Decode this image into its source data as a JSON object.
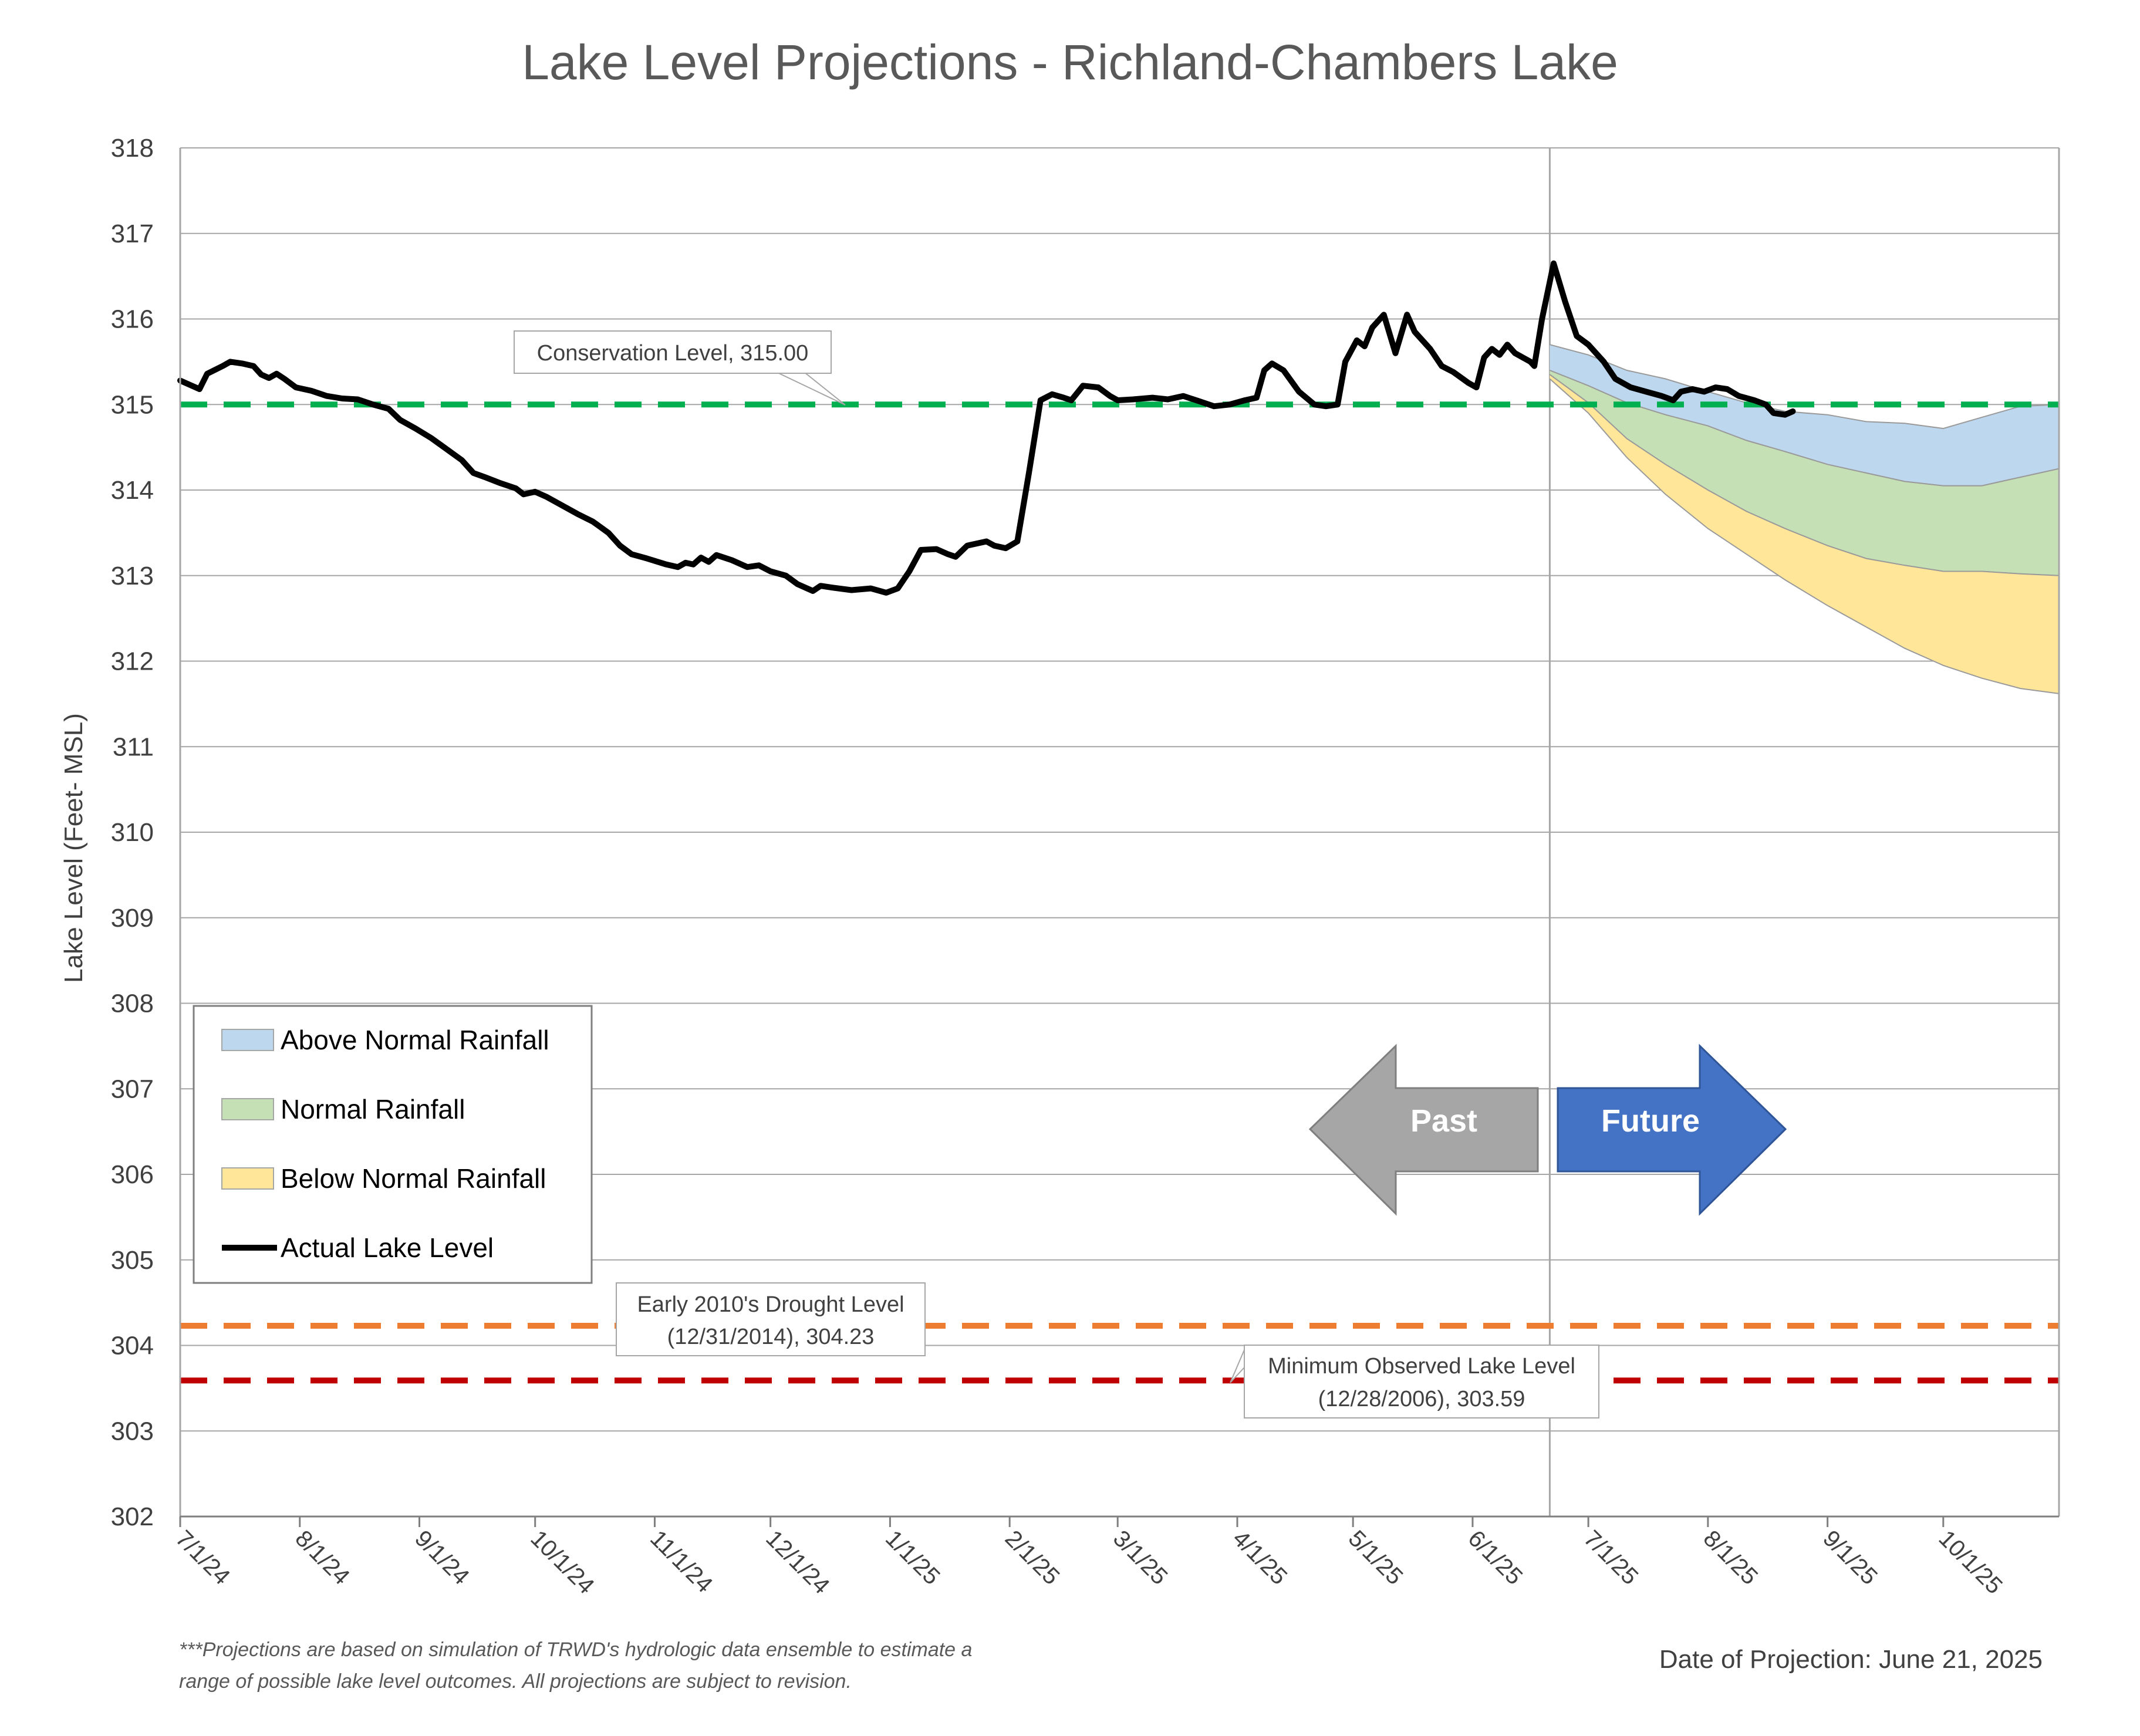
{
  "chart_data": {
    "type": "line",
    "title": "Lake Level Projections - Richland-Chambers Lake",
    "ylabel": "Lake Level (Feet- MSL)",
    "ylim": [
      302,
      318
    ],
    "yticks": [
      "302",
      "303",
      "304",
      "305",
      "306",
      "307",
      "308",
      "309",
      "310",
      "311",
      "312",
      "313",
      "314",
      "315",
      "316",
      "317",
      "318"
    ],
    "xlim": [
      "2024-07-01",
      "2025-10-31"
    ],
    "xticks": [
      {
        "label": "7/1/24",
        "date": "2024-07-01"
      },
      {
        "label": "8/1/24",
        "date": "2024-08-01"
      },
      {
        "label": "9/1/24",
        "date": "2024-09-01"
      },
      {
        "label": "10/1/24",
        "date": "2024-10-01"
      },
      {
        "label": "11/1/24",
        "date": "2024-11-01"
      },
      {
        "label": "12/1/24",
        "date": "2024-12-01"
      },
      {
        "label": "1/1/25",
        "date": "2025-01-01"
      },
      {
        "label": "2/1/25",
        "date": "2025-02-01"
      },
      {
        "label": "3/1/25",
        "date": "2025-03-01"
      },
      {
        "label": "4/1/25",
        "date": "2025-04-01"
      },
      {
        "label": "5/1/25",
        "date": "2025-05-01"
      },
      {
        "label": "6/1/25",
        "date": "2025-06-01"
      },
      {
        "label": "7/1/25",
        "date": "2025-07-01"
      },
      {
        "label": "8/1/25",
        "date": "2025-08-01"
      },
      {
        "label": "9/1/25",
        "date": "2025-09-01"
      },
      {
        "label": "10/1/25",
        "date": "2025-10-01"
      }
    ],
    "grid": true,
    "projection_date": "2025-06-21",
    "series": [
      {
        "name": "Actual Lake Level",
        "color": "#000000",
        "points": [
          [
            "2024-07-01",
            315.28
          ],
          [
            "2024-07-04",
            315.22
          ],
          [
            "2024-07-06",
            315.18
          ],
          [
            "2024-07-08",
            315.36
          ],
          [
            "2024-07-12",
            315.45
          ],
          [
            "2024-07-14",
            315.5
          ],
          [
            "2024-07-17",
            315.48
          ],
          [
            "2024-07-20",
            315.45
          ],
          [
            "2024-07-22",
            315.35
          ],
          [
            "2024-07-24",
            315.31
          ],
          [
            "2024-07-26",
            315.36
          ],
          [
            "2024-07-28",
            315.3
          ],
          [
            "2024-07-31",
            315.2
          ],
          [
            "2024-08-04",
            315.16
          ],
          [
            "2024-08-08",
            315.1
          ],
          [
            "2024-08-12",
            315.07
          ],
          [
            "2024-08-16",
            315.06
          ],
          [
            "2024-08-20",
            315.0
          ],
          [
            "2024-08-24",
            314.95
          ],
          [
            "2024-08-27",
            314.82
          ],
          [
            "2024-08-31",
            314.72
          ],
          [
            "2024-09-04",
            314.61
          ],
          [
            "2024-09-08",
            314.48
          ],
          [
            "2024-09-12",
            314.35
          ],
          [
            "2024-09-15",
            314.2
          ],
          [
            "2024-09-18",
            314.15
          ],
          [
            "2024-09-22",
            314.08
          ],
          [
            "2024-09-26",
            314.02
          ],
          [
            "2024-09-28",
            313.95
          ],
          [
            "2024-10-01",
            313.98
          ],
          [
            "2024-10-04",
            313.92
          ],
          [
            "2024-10-08",
            313.82
          ],
          [
            "2024-10-12",
            313.72
          ],
          [
            "2024-10-16",
            313.63
          ],
          [
            "2024-10-20",
            313.5
          ],
          [
            "2024-10-23",
            313.35
          ],
          [
            "2024-10-26",
            313.25
          ],
          [
            "2024-10-30",
            313.2
          ],
          [
            "2024-11-04",
            313.13
          ],
          [
            "2024-11-07",
            313.1
          ],
          [
            "2024-11-09",
            313.15
          ],
          [
            "2024-11-11",
            313.13
          ],
          [
            "2024-11-13",
            313.21
          ],
          [
            "2024-11-15",
            313.16
          ],
          [
            "2024-11-17",
            313.24
          ],
          [
            "2024-11-21",
            313.18
          ],
          [
            "2024-11-25",
            313.1
          ],
          [
            "2024-11-28",
            313.12
          ],
          [
            "2024-12-01",
            313.05
          ],
          [
            "2024-12-05",
            313.0
          ],
          [
            "2024-12-08",
            312.9
          ],
          [
            "2024-12-12",
            312.82
          ],
          [
            "2024-12-14",
            312.88
          ],
          [
            "2024-12-17",
            312.86
          ],
          [
            "2024-12-22",
            312.83
          ],
          [
            "2024-12-27",
            312.85
          ],
          [
            "2024-12-31",
            312.8
          ],
          [
            "2025-01-03",
            312.85
          ],
          [
            "2025-01-06",
            313.05
          ],
          [
            "2025-01-09",
            313.3
          ],
          [
            "2025-01-13",
            313.31
          ],
          [
            "2025-01-16",
            313.25
          ],
          [
            "2025-01-18",
            313.22
          ],
          [
            "2025-01-21",
            313.35
          ],
          [
            "2025-01-24",
            313.38
          ],
          [
            "2025-01-26",
            313.4
          ],
          [
            "2025-01-28",
            313.35
          ],
          [
            "2025-01-31",
            313.32
          ],
          [
            "2025-02-03",
            313.4
          ],
          [
            "2025-02-06",
            314.2
          ],
          [
            "2025-02-09",
            315.05
          ],
          [
            "2025-02-12",
            315.12
          ],
          [
            "2025-02-15",
            315.08
          ],
          [
            "2025-02-17",
            315.05
          ],
          [
            "2025-02-20",
            315.22
          ],
          [
            "2025-02-24",
            315.2
          ],
          [
            "2025-02-27",
            315.1
          ],
          [
            "2025-03-01",
            315.05
          ],
          [
            "2025-03-05",
            315.06
          ],
          [
            "2025-03-10",
            315.08
          ],
          [
            "2025-03-14",
            315.06
          ],
          [
            "2025-03-18",
            315.1
          ],
          [
            "2025-03-22",
            315.04
          ],
          [
            "2025-03-26",
            314.98
          ],
          [
            "2025-03-30",
            315.0
          ],
          [
            "2025-04-03",
            315.05
          ],
          [
            "2025-04-06",
            315.08
          ],
          [
            "2025-04-08",
            315.4
          ],
          [
            "2025-04-10",
            315.48
          ],
          [
            "2025-04-13",
            315.4
          ],
          [
            "2025-04-17",
            315.15
          ],
          [
            "2025-04-21",
            315.0
          ],
          [
            "2025-04-24",
            314.98
          ],
          [
            "2025-04-27",
            315.0
          ],
          [
            "2025-04-29",
            315.5
          ],
          [
            "2025-05-02",
            315.75
          ],
          [
            "2025-05-04",
            315.68
          ],
          [
            "2025-05-06",
            315.9
          ],
          [
            "2025-05-09",
            316.05
          ],
          [
            "2025-05-12",
            315.6
          ],
          [
            "2025-05-15",
            316.05
          ],
          [
            "2025-05-17",
            315.85
          ],
          [
            "2025-05-21",
            315.65
          ],
          [
            "2025-05-24",
            315.45
          ],
          [
            "2025-05-27",
            315.38
          ],
          [
            "2025-05-31",
            315.25
          ],
          [
            "2025-06-02",
            315.2
          ],
          [
            "2025-06-04",
            315.55
          ],
          [
            "2025-06-06",
            315.65
          ],
          [
            "2025-06-08",
            315.58
          ],
          [
            "2025-06-10",
            315.7
          ],
          [
            "2025-06-12",
            315.6
          ],
          [
            "2025-06-14",
            315.55
          ],
          [
            "2025-06-16",
            315.5
          ],
          [
            "2025-06-17",
            315.45
          ],
          [
            "2025-06-19",
            316.0
          ],
          [
            "2025-06-22",
            316.65
          ],
          [
            "2025-06-25",
            316.2
          ],
          [
            "2025-06-28",
            315.8
          ],
          [
            "2025-07-01",
            315.7
          ],
          [
            "2025-07-05",
            315.5
          ],
          [
            "2025-07-08",
            315.3
          ],
          [
            "2025-07-12",
            315.2
          ],
          [
            "2025-07-16",
            315.15
          ],
          [
            "2025-07-20",
            315.1
          ],
          [
            "2025-07-23",
            315.05
          ],
          [
            "2025-07-25",
            315.15
          ],
          [
            "2025-07-28",
            315.18
          ],
          [
            "2025-07-31",
            315.15
          ],
          [
            "2025-08-03",
            315.2
          ],
          [
            "2025-08-06",
            315.18
          ],
          [
            "2025-08-09",
            315.1
          ],
          [
            "2025-08-13",
            315.05
          ],
          [
            "2025-08-16",
            315.0
          ],
          [
            "2025-08-18",
            314.9
          ],
          [
            "2025-08-21",
            314.88
          ],
          [
            "2025-08-23",
            314.92
          ]
        ]
      },
      {
        "name": "Above Normal Rainfall",
        "color": "#bdd7ee",
        "band_top": [
          [
            "2025-06-21",
            315.7
          ],
          [
            "2025-07-01",
            315.58
          ],
          [
            "2025-07-11",
            315.4
          ],
          [
            "2025-07-21",
            315.3
          ],
          [
            "2025-08-01",
            315.15
          ],
          [
            "2025-08-11",
            315.02
          ],
          [
            "2025-08-21",
            314.92
          ],
          [
            "2025-09-01",
            314.88
          ],
          [
            "2025-09-11",
            314.8
          ],
          [
            "2025-09-21",
            314.78
          ],
          [
            "2025-10-01",
            314.72
          ],
          [
            "2025-10-11",
            314.85
          ],
          [
            "2025-10-21",
            314.98
          ],
          [
            "2025-10-31",
            315.0
          ]
        ],
        "band_bottom": [
          [
            "2025-06-21",
            315.4
          ],
          [
            "2025-07-01",
            315.22
          ],
          [
            "2025-07-11",
            315.02
          ],
          [
            "2025-07-21",
            314.88
          ],
          [
            "2025-08-01",
            314.75
          ],
          [
            "2025-08-11",
            314.58
          ],
          [
            "2025-08-21",
            314.45
          ],
          [
            "2025-09-01",
            314.3
          ],
          [
            "2025-09-11",
            314.2
          ],
          [
            "2025-09-21",
            314.1
          ],
          [
            "2025-10-01",
            314.05
          ],
          [
            "2025-10-11",
            314.05
          ],
          [
            "2025-10-21",
            314.15
          ],
          [
            "2025-10-31",
            314.25
          ]
        ]
      },
      {
        "name": "Normal Rainfall",
        "color": "#c5e0b4",
        "band_top": [
          [
            "2025-06-21",
            315.4
          ],
          [
            "2025-07-01",
            315.22
          ],
          [
            "2025-07-11",
            315.02
          ],
          [
            "2025-07-21",
            314.88
          ],
          [
            "2025-08-01",
            314.75
          ],
          [
            "2025-08-11",
            314.58
          ],
          [
            "2025-08-21",
            314.45
          ],
          [
            "2025-09-01",
            314.3
          ],
          [
            "2025-09-11",
            314.2
          ],
          [
            "2025-09-21",
            314.1
          ],
          [
            "2025-10-01",
            314.05
          ],
          [
            "2025-10-11",
            314.05
          ],
          [
            "2025-10-21",
            314.15
          ],
          [
            "2025-10-31",
            314.25
          ]
        ],
        "band_bottom": [
          [
            "2025-06-21",
            315.35
          ],
          [
            "2025-07-01",
            315.02
          ],
          [
            "2025-07-11",
            314.6
          ],
          [
            "2025-07-21",
            314.3
          ],
          [
            "2025-08-01",
            314.0
          ],
          [
            "2025-08-11",
            313.75
          ],
          [
            "2025-08-21",
            313.55
          ],
          [
            "2025-09-01",
            313.35
          ],
          [
            "2025-09-11",
            313.2
          ],
          [
            "2025-09-21",
            313.12
          ],
          [
            "2025-10-01",
            313.05
          ],
          [
            "2025-10-11",
            313.05
          ],
          [
            "2025-10-21",
            313.02
          ],
          [
            "2025-10-31",
            313.0
          ]
        ]
      },
      {
        "name": "Below Normal Rainfall",
        "color": "#ffe699",
        "band_top": [
          [
            "2025-06-21",
            315.35
          ],
          [
            "2025-07-01",
            315.02
          ],
          [
            "2025-07-11",
            314.6
          ],
          [
            "2025-07-21",
            314.3
          ],
          [
            "2025-08-01",
            314.0
          ],
          [
            "2025-08-11",
            313.75
          ],
          [
            "2025-08-21",
            313.55
          ],
          [
            "2025-09-01",
            313.35
          ],
          [
            "2025-09-11",
            313.2
          ],
          [
            "2025-09-21",
            313.12
          ],
          [
            "2025-10-01",
            313.05
          ],
          [
            "2025-10-11",
            313.05
          ],
          [
            "2025-10-21",
            313.02
          ],
          [
            "2025-10-31",
            313.0
          ]
        ],
        "band_bottom": [
          [
            "2025-06-21",
            315.3
          ],
          [
            "2025-07-01",
            314.9
          ],
          [
            "2025-07-11",
            314.38
          ],
          [
            "2025-07-21",
            313.95
          ],
          [
            "2025-08-01",
            313.55
          ],
          [
            "2025-08-11",
            313.25
          ],
          [
            "2025-08-21",
            312.95
          ],
          [
            "2025-09-01",
            312.65
          ],
          [
            "2025-09-11",
            312.4
          ],
          [
            "2025-09-21",
            312.15
          ],
          [
            "2025-10-01",
            311.95
          ],
          [
            "2025-10-11",
            311.8
          ],
          [
            "2025-10-21",
            311.68
          ],
          [
            "2025-10-31",
            311.62
          ]
        ]
      }
    ],
    "reference_lines": [
      {
        "value": 315.0,
        "color": "#00b050",
        "callout": "Conservation Level, 315.00"
      },
      {
        "value": 304.23,
        "color": "#ed7d31",
        "callout_line1": "Early 2010's Drought Level",
        "callout_line2": "(12/31/2014), 304.23"
      },
      {
        "value": 303.59,
        "color": "#c00000",
        "callout_line1": "Minimum Observed Lake Level",
        "callout_line2": "(12/28/2006), 303.59"
      }
    ],
    "legend": {
      "placement": "bottom-left",
      "entries": [
        {
          "label": "Above Normal Rainfall",
          "color": "#bdd7ee",
          "kind": "fill"
        },
        {
          "label": "Normal Rainfall",
          "color": "#c5e0b4",
          "kind": "fill"
        },
        {
          "label": "Below Normal Rainfall",
          "color": "#ffe699",
          "kind": "fill"
        },
        {
          "label": "Actual Lake Level",
          "color": "#000000",
          "kind": "line"
        }
      ]
    },
    "arrows": {
      "past": {
        "label": "Past",
        "color": "#a6a6a6"
      },
      "future": {
        "label": "Future",
        "color": "#4472c4"
      }
    },
    "footnote_line1": "***Projections are based on simulation of TRWD's hydrologic data ensemble to estimate a",
    "footnote_line2": "range of possible lake level outcomes.  All projections are subject to revision.",
    "projection_label": "Date of Projection: June 21, 2025"
  }
}
